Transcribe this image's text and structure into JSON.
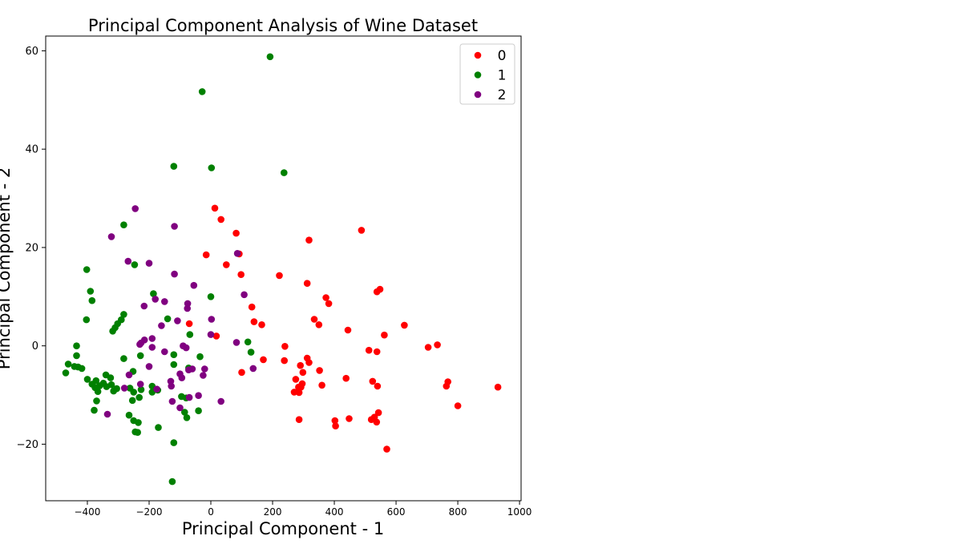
{
  "chart_data": {
    "type": "scatter",
    "title": "Principal Component Analysis of Wine Dataset",
    "xlabel": "Principal Component - 1",
    "ylabel": "Principal Component - 2",
    "xlim": [
      -535,
      1005
    ],
    "ylim": [
      -31.5,
      63
    ],
    "xticks": [
      -400,
      -200,
      0,
      200,
      400,
      600,
      800,
      1000
    ],
    "xtick_labels": [
      "−400",
      "−200",
      "0",
      "200",
      "400",
      "600",
      "800",
      "1000"
    ],
    "yticks": [
      -20,
      0,
      20,
      40,
      60
    ],
    "ytick_labels": [
      "−20",
      "0",
      "20",
      "40",
      "60"
    ],
    "grid": false,
    "legend": "top-right",
    "series": [
      {
        "name": "0",
        "color": "#ff0000",
        "points": [
          [
            13,
            28
          ],
          [
            33,
            25.7
          ],
          [
            82,
            22.9
          ],
          [
            92,
            18.7
          ],
          [
            98,
            14.5
          ],
          [
            -15,
            18.5
          ],
          [
            50,
            16.5
          ],
          [
            -70,
            4.5
          ],
          [
            18,
            2
          ],
          [
            133,
            7.9
          ],
          [
            140,
            4.9
          ],
          [
            165,
            4.3
          ],
          [
            170,
            -2.8
          ],
          [
            100,
            -5.4
          ],
          [
            222,
            14.3
          ],
          [
            240,
            -0.1
          ],
          [
            238,
            -3
          ],
          [
            318,
            21.5
          ],
          [
            312,
            12.7
          ],
          [
            335,
            5.4
          ],
          [
            350,
            4.3
          ],
          [
            373,
            9.8
          ],
          [
            382,
            8.6
          ],
          [
            488,
            23.5
          ],
          [
            538,
            11
          ],
          [
            548,
            11.5
          ],
          [
            444,
            3.2
          ],
          [
            562,
            2.2
          ],
          [
            627,
            4.2
          ],
          [
            512,
            -0.9
          ],
          [
            538,
            -1.2
          ],
          [
            704,
            -0.3
          ],
          [
            734,
            0.2
          ],
          [
            312,
            -2.5
          ],
          [
            318,
            -3.4
          ],
          [
            298,
            -5.4
          ],
          [
            290,
            -4
          ],
          [
            275,
            -6.8
          ],
          [
            296,
            -7.7
          ],
          [
            284,
            -8.4
          ],
          [
            292,
            -8.4
          ],
          [
            270,
            -9.4
          ],
          [
            286,
            -9.5
          ],
          [
            352,
            -5
          ],
          [
            360,
            -8
          ],
          [
            438,
            -6.6
          ],
          [
            524,
            -7.2
          ],
          [
            540,
            -8.2
          ],
          [
            286,
            -15
          ],
          [
            402,
            -15.2
          ],
          [
            404,
            -16.3
          ],
          [
            448,
            -14.8
          ],
          [
            520,
            -15
          ],
          [
            530,
            -14.5
          ],
          [
            537,
            -15.5
          ],
          [
            543,
            -13.6
          ],
          [
            570,
            -21
          ],
          [
            763,
            -8.2
          ],
          [
            768,
            -7.3
          ],
          [
            800,
            -12.2
          ],
          [
            930,
            -8.4
          ]
        ]
      },
      {
        "name": "1",
        "color": "#008000",
        "points": [
          [
            192,
            58.8
          ],
          [
            -28,
            51.7
          ],
          [
            -120,
            36.5
          ],
          [
            2,
            36.2
          ],
          [
            237,
            35.2
          ],
          [
            -282,
            24.6
          ],
          [
            -247,
            16.5
          ],
          [
            -402,
            15.5
          ],
          [
            -390,
            11.1
          ],
          [
            -385,
            9.2
          ],
          [
            -403,
            5.3
          ],
          [
            -282,
            6.4
          ],
          [
            -290,
            5.3
          ],
          [
            -302,
            4.5
          ],
          [
            -310,
            3.7
          ],
          [
            -318,
            3
          ],
          [
            -186,
            10.6
          ],
          [
            -140,
            5.5
          ],
          [
            -68,
            2.3
          ],
          [
            0,
            10
          ],
          [
            -35,
            -2.2
          ],
          [
            130,
            -1.3
          ],
          [
            120,
            0.8
          ],
          [
            -72,
            -4.5
          ],
          [
            -120,
            -1.8
          ],
          [
            -120,
            -3.8
          ],
          [
            -435,
            0
          ],
          [
            -435,
            -2
          ],
          [
            -462,
            -3.7
          ],
          [
            -442,
            -4.2
          ],
          [
            -430,
            -4.3
          ],
          [
            -418,
            -4.6
          ],
          [
            -470,
            -5.5
          ],
          [
            -400,
            -6.8
          ],
          [
            -385,
            -7.8
          ],
          [
            -372,
            -7.1
          ],
          [
            -360,
            -8.1
          ],
          [
            -340,
            -5.9
          ],
          [
            -325,
            -6.5
          ],
          [
            -348,
            -7.6
          ],
          [
            -338,
            -8.3
          ],
          [
            -322,
            -7.9
          ],
          [
            -315,
            -9.2
          ],
          [
            -305,
            -8.7
          ],
          [
            -282,
            -2.6
          ],
          [
            -262,
            -8.6
          ],
          [
            -250,
            -9.4
          ],
          [
            -252,
            -5.2
          ],
          [
            -228,
            -2
          ],
          [
            -226,
            -8.9
          ],
          [
            -232,
            -10.5
          ],
          [
            -254,
            -11.1
          ],
          [
            -375,
            -8.5
          ],
          [
            -366,
            -9.3
          ],
          [
            -370,
            -11.2
          ],
          [
            -378,
            -13.1
          ],
          [
            -265,
            -14.1
          ],
          [
            -250,
            -15.2
          ],
          [
            -235,
            -15.6
          ],
          [
            -245,
            -17.5
          ],
          [
            -237,
            -17.6
          ],
          [
            -190,
            -8.2
          ],
          [
            -190,
            -9.4
          ],
          [
            -172,
            -9
          ],
          [
            -170,
            -16.6
          ],
          [
            -120,
            -19.7
          ],
          [
            -125,
            -27.6
          ],
          [
            -95,
            -10.3
          ],
          [
            -80,
            -10.6
          ],
          [
            -85,
            -13.5
          ],
          [
            -78,
            -14.6
          ],
          [
            -40,
            -13.2
          ]
        ]
      },
      {
        "name": "2",
        "color": "#800080",
        "points": [
          [
            -245,
            27.9
          ],
          [
            -322,
            22.2
          ],
          [
            -118,
            24.3
          ],
          [
            -268,
            17.2
          ],
          [
            -200,
            16.8
          ],
          [
            -118,
            14.6
          ],
          [
            -55,
            12.3
          ],
          [
            86,
            18.8
          ],
          [
            -180,
            9.5
          ],
          [
            -150,
            9
          ],
          [
            -216,
            8.1
          ],
          [
            -75,
            8.6
          ],
          [
            -76,
            7.6
          ],
          [
            108,
            10.4
          ],
          [
            -108,
            5.1
          ],
          [
            2,
            5.4
          ],
          [
            -160,
            4.1
          ],
          [
            -190,
            1.5
          ],
          [
            -215,
            1.2
          ],
          [
            -230,
            0.3
          ],
          [
            -226,
            0.6
          ],
          [
            -190,
            -0.3
          ],
          [
            -150,
            -1.2
          ],
          [
            -90,
            0
          ],
          [
            -80,
            -0.4
          ],
          [
            0,
            2.3
          ],
          [
            83,
            0.7
          ],
          [
            -20,
            -4.7
          ],
          [
            -60,
            -4.7
          ],
          [
            -72,
            -4.9
          ],
          [
            -100,
            -5.7
          ],
          [
            -200,
            -4.2
          ],
          [
            -265,
            -5.9
          ],
          [
            -94,
            -6.5
          ],
          [
            -130,
            -7.2
          ],
          [
            -25,
            -6
          ],
          [
            -175,
            -8.8
          ],
          [
            -228,
            -7.8
          ],
          [
            -280,
            -8.6
          ],
          [
            -128,
            -8.2
          ],
          [
            137,
            -4.6
          ],
          [
            -335,
            -13.9
          ],
          [
            -125,
            -11.3
          ],
          [
            -70,
            -10.5
          ],
          [
            -40,
            -10.1
          ],
          [
            -100,
            -12.6
          ],
          [
            33,
            -11.3
          ]
        ]
      }
    ]
  }
}
